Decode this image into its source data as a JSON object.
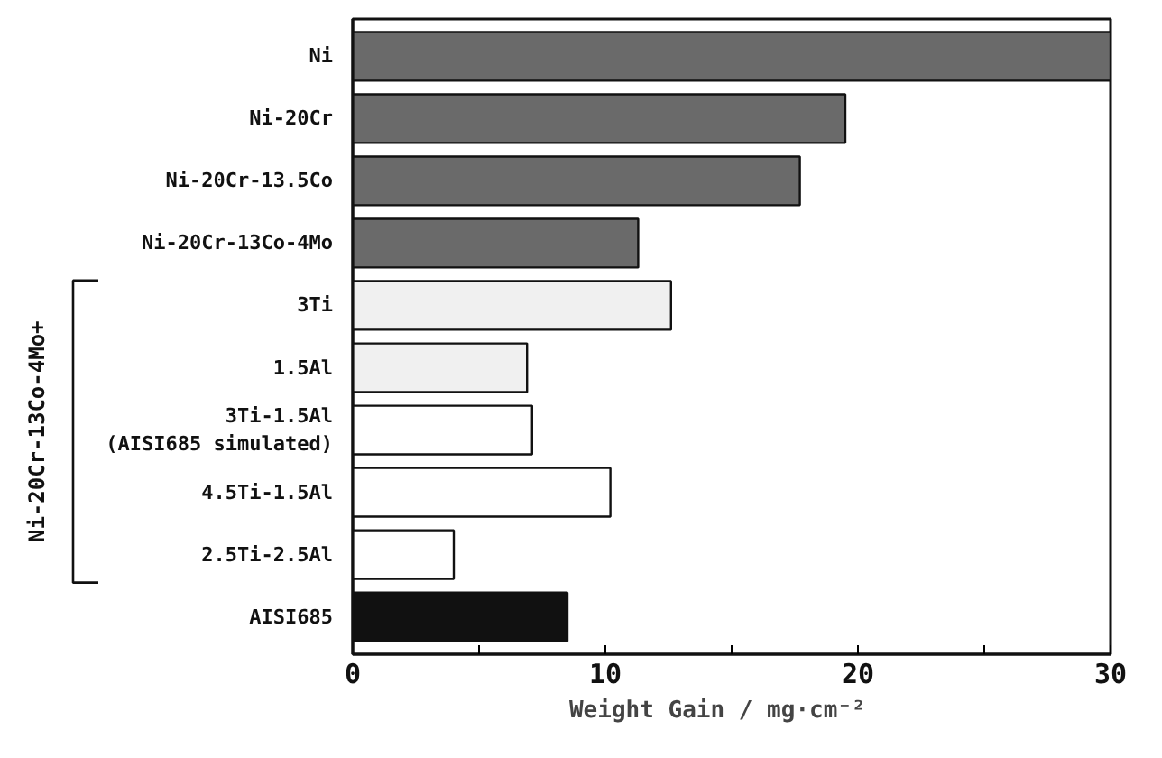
{
  "chart_data": {
    "type": "bar",
    "orientation": "horizontal",
    "categories": [
      "Ni",
      "Ni-20Cr",
      "Ni-20Cr-13.5Co",
      "Ni-20Cr-13Co-4Mo",
      "3Ti",
      "1.5Al",
      "3Ti-1.5Al\n(AISI685 simulated)",
      "4.5Ti-1.5Al",
      "2.5Ti-2.5Al",
      "AISI685"
    ],
    "values": [
      30,
      19.5,
      17.7,
      11.3,
      12.6,
      6.9,
      7.1,
      10.2,
      4.0,
      8.5
    ],
    "colors": [
      "#6a6a6a",
      "#6a6a6a",
      "#6a6a6a",
      "#6a6a6a",
      "#f0f0f0",
      "#f0f0f0",
      "#ffffff",
      "#ffffff",
      "#ffffff",
      "#111111"
    ],
    "xlim": [
      0,
      30
    ],
    "xticks": [
      0,
      {
        "value": 5,
        "label": null
      },
      10,
      {
        "value": 15,
        "label": null
      },
      20,
      {
        "value": 25,
        "label": null
      },
      30
    ],
    "xlabel": "Weight Gain  /  mg·cm⁻²",
    "annotations": [
      "Ni-20Cr-13Co-4Mo+"
    ],
    "grid": false
  }
}
